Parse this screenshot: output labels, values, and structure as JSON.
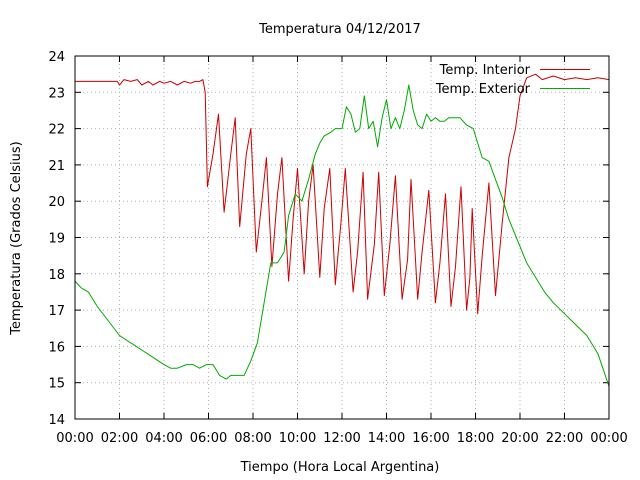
{
  "chart_data": {
    "type": "line",
    "title": "Temperatura 04/12/2017",
    "xlabel": "Tiempo (Hora Local Argentina)",
    "ylabel": "Temperatura (Grados Celsius)",
    "xlim": [
      0,
      24
    ],
    "ylim": [
      14,
      24
    ],
    "x_ticks": [
      "00:00",
      "02:00",
      "04:00",
      "06:00",
      "08:00",
      "10:00",
      "12:00",
      "14:00",
      "16:00",
      "18:00",
      "20:00",
      "22:00",
      "00:00"
    ],
    "y_ticks": [
      "14",
      "15",
      "16",
      "17",
      "18",
      "19",
      "20",
      "21",
      "22",
      "23",
      "24"
    ],
    "grid": true,
    "legend_position": "top-right",
    "series": [
      {
        "name": "Temp. Interior",
        "color": "#cc0000",
        "points": [
          [
            0.0,
            23.3
          ],
          [
            1.9,
            23.3
          ],
          [
            2.0,
            23.2
          ],
          [
            2.2,
            23.35
          ],
          [
            2.5,
            23.3
          ],
          [
            2.8,
            23.35
          ],
          [
            3.0,
            23.2
          ],
          [
            3.3,
            23.3
          ],
          [
            3.5,
            23.2
          ],
          [
            3.8,
            23.3
          ],
          [
            4.0,
            23.25
          ],
          [
            4.3,
            23.3
          ],
          [
            4.6,
            23.2
          ],
          [
            4.9,
            23.3
          ],
          [
            5.2,
            23.25
          ],
          [
            5.4,
            23.3
          ],
          [
            5.6,
            23.3
          ],
          [
            5.75,
            23.35
          ],
          [
            5.85,
            23.0
          ],
          [
            5.95,
            20.4
          ],
          [
            6.2,
            21.3
          ],
          [
            6.45,
            22.4
          ],
          [
            6.7,
            19.7
          ],
          [
            7.0,
            21.3
          ],
          [
            7.2,
            22.3
          ],
          [
            7.4,
            19.3
          ],
          [
            7.7,
            21.3
          ],
          [
            7.9,
            22.0
          ],
          [
            8.15,
            18.6
          ],
          [
            8.4,
            20.0
          ],
          [
            8.6,
            21.2
          ],
          [
            8.85,
            18.2
          ],
          [
            9.1,
            20.2
          ],
          [
            9.3,
            21.2
          ],
          [
            9.6,
            17.8
          ],
          [
            9.8,
            19.5
          ],
          [
            10.0,
            20.9
          ],
          [
            10.3,
            18.0
          ],
          [
            10.5,
            20.0
          ],
          [
            10.7,
            21.0
          ],
          [
            11.0,
            17.9
          ],
          [
            11.2,
            19.8
          ],
          [
            11.45,
            20.9
          ],
          [
            11.7,
            17.7
          ],
          [
            11.95,
            19.4
          ],
          [
            12.15,
            20.9
          ],
          [
            12.5,
            17.5
          ],
          [
            12.7,
            18.6
          ],
          [
            12.95,
            20.8
          ],
          [
            13.15,
            17.3
          ],
          [
            13.45,
            18.8
          ],
          [
            13.65,
            20.8
          ],
          [
            13.9,
            17.4
          ],
          [
            14.15,
            18.8
          ],
          [
            14.4,
            20.7
          ],
          [
            14.7,
            17.3
          ],
          [
            14.95,
            18.4
          ],
          [
            15.1,
            20.6
          ],
          [
            15.4,
            17.3
          ],
          [
            15.6,
            18.6
          ],
          [
            15.9,
            20.3
          ],
          [
            16.2,
            17.2
          ],
          [
            16.4,
            18.3
          ],
          [
            16.65,
            20.2
          ],
          [
            16.9,
            17.1
          ],
          [
            17.1,
            18.2
          ],
          [
            17.35,
            20.4
          ],
          [
            17.6,
            17.0
          ],
          [
            17.75,
            17.9
          ],
          [
            17.85,
            19.8
          ],
          [
            18.1,
            16.9
          ],
          [
            18.3,
            18.5
          ],
          [
            18.6,
            20.5
          ],
          [
            18.9,
            17.4
          ],
          [
            19.2,
            19.4
          ],
          [
            19.5,
            21.2
          ],
          [
            19.8,
            22.0
          ],
          [
            20.0,
            22.9
          ],
          [
            20.3,
            23.4
          ],
          [
            20.7,
            23.5
          ],
          [
            21.0,
            23.35
          ],
          [
            21.5,
            23.45
          ],
          [
            22.0,
            23.35
          ],
          [
            22.5,
            23.4
          ],
          [
            23.0,
            23.35
          ],
          [
            23.5,
            23.4
          ],
          [
            24.0,
            23.35
          ]
        ]
      },
      {
        "name": "Temp. Exterior",
        "color": "#00aa00",
        "points": [
          [
            0.0,
            17.8
          ],
          [
            0.3,
            17.6
          ],
          [
            0.6,
            17.5
          ],
          [
            1.0,
            17.1
          ],
          [
            1.5,
            16.7
          ],
          [
            2.0,
            16.3
          ],
          [
            2.5,
            16.1
          ],
          [
            3.0,
            15.9
          ],
          [
            3.5,
            15.7
          ],
          [
            4.0,
            15.5
          ],
          [
            4.3,
            15.4
          ],
          [
            4.6,
            15.4
          ],
          [
            5.0,
            15.5
          ],
          [
            5.3,
            15.5
          ],
          [
            5.6,
            15.4
          ],
          [
            5.9,
            15.5
          ],
          [
            6.2,
            15.5
          ],
          [
            6.5,
            15.2
          ],
          [
            6.8,
            15.1
          ],
          [
            7.0,
            15.2
          ],
          [
            7.3,
            15.2
          ],
          [
            7.6,
            15.2
          ],
          [
            7.9,
            15.6
          ],
          [
            8.2,
            16.1
          ],
          [
            8.5,
            17.2
          ],
          [
            8.8,
            18.3
          ],
          [
            9.1,
            18.3
          ],
          [
            9.4,
            18.6
          ],
          [
            9.6,
            19.6
          ],
          [
            9.9,
            20.2
          ],
          [
            10.2,
            20.0
          ],
          [
            10.5,
            20.6
          ],
          [
            10.8,
            21.3
          ],
          [
            11.0,
            21.6
          ],
          [
            11.2,
            21.8
          ],
          [
            11.5,
            21.9
          ],
          [
            11.7,
            22.0
          ],
          [
            12.0,
            22.0
          ],
          [
            12.2,
            22.6
          ],
          [
            12.4,
            22.4
          ],
          [
            12.6,
            21.9
          ],
          [
            12.8,
            22.0
          ],
          [
            13.0,
            22.9
          ],
          [
            13.2,
            22.0
          ],
          [
            13.4,
            22.2
          ],
          [
            13.6,
            21.5
          ],
          [
            13.8,
            22.3
          ],
          [
            14.0,
            22.8
          ],
          [
            14.2,
            22.0
          ],
          [
            14.4,
            22.3
          ],
          [
            14.6,
            22.0
          ],
          [
            14.8,
            22.5
          ],
          [
            15.0,
            23.2
          ],
          [
            15.2,
            22.5
          ],
          [
            15.4,
            22.1
          ],
          [
            15.6,
            22.0
          ],
          [
            15.8,
            22.4
          ],
          [
            16.0,
            22.2
          ],
          [
            16.2,
            22.3
          ],
          [
            16.4,
            22.2
          ],
          [
            16.6,
            22.2
          ],
          [
            16.8,
            22.3
          ],
          [
            17.0,
            22.3
          ],
          [
            17.3,
            22.3
          ],
          [
            17.6,
            22.1
          ],
          [
            17.9,
            22.0
          ],
          [
            18.1,
            21.6
          ],
          [
            18.3,
            21.2
          ],
          [
            18.6,
            21.1
          ],
          [
            18.9,
            20.6
          ],
          [
            19.2,
            20.1
          ],
          [
            19.5,
            19.5
          ],
          [
            19.9,
            18.9
          ],
          [
            20.3,
            18.3
          ],
          [
            20.7,
            17.9
          ],
          [
            21.1,
            17.5
          ],
          [
            21.5,
            17.2
          ],
          [
            22.0,
            16.9
          ],
          [
            22.5,
            16.6
          ],
          [
            23.0,
            16.3
          ],
          [
            23.5,
            15.8
          ],
          [
            24.0,
            14.9
          ]
        ]
      }
    ]
  }
}
